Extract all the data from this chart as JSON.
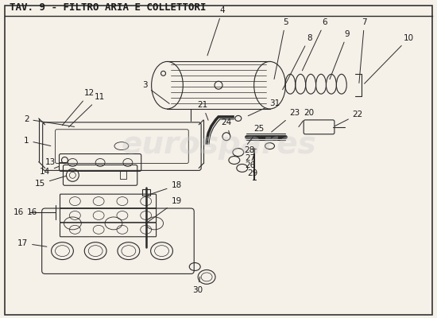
{
  "title": "TAV. 9 - FILTRO ARIA E COLLETTORI",
  "bg_color": "#f5f0e8",
  "line_color": "#2a2a2a",
  "label_color": "#1a1a1a",
  "watermark": "eurospares",
  "watermark_color": "#cccccc",
  "border_color": "#333333",
  "title_fontsize": 9,
  "label_fontsize": 7.5
}
